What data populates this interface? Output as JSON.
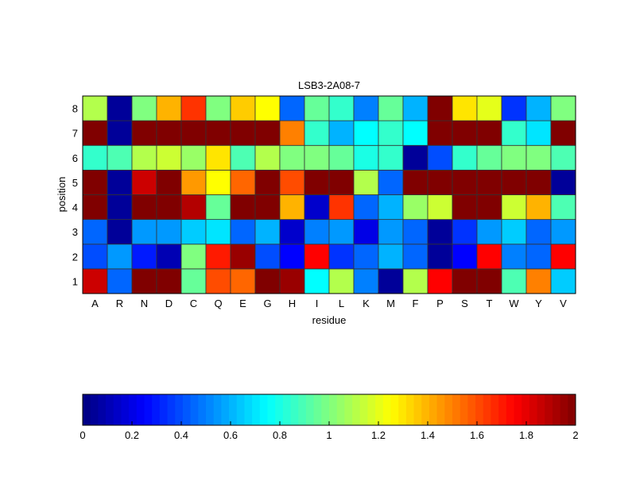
{
  "chart_data": {
    "type": "heatmap",
    "title": "LSB3-2A08-7",
    "xlabel": "residue",
    "ylabel": "position",
    "x_categories": [
      "A",
      "R",
      "N",
      "D",
      "C",
      "Q",
      "E",
      "G",
      "H",
      "I",
      "L",
      "K",
      "M",
      "F",
      "P",
      "S",
      "T",
      "W",
      "Y",
      "V"
    ],
    "y_categories": [
      "1",
      "2",
      "3",
      "4",
      "5",
      "6",
      "7",
      "8"
    ],
    "colormap": "jet",
    "clim": [
      0,
      2
    ],
    "colorbar": {
      "placement": "bottom",
      "ticks": [
        "0",
        "0.2",
        "0.4",
        "0.6",
        "0.8",
        "1",
        "1.2",
        "1.4",
        "1.6",
        "1.8",
        "2"
      ]
    },
    "values": [
      [
        1.85,
        0.45,
        2,
        2,
        0.95,
        1.6,
        1.55,
        2,
        1.95,
        0.75,
        1.1,
        0.5,
        0.05,
        1.1,
        1.75,
        2,
        2,
        0.9,
        1.5,
        0.65
      ],
      [
        0.4,
        0.55,
        0.3,
        0.1,
        1.0,
        1.7,
        1.95,
        0.4,
        0.25,
        1.75,
        0.35,
        0.45,
        0.6,
        0.45,
        0.05,
        0.25,
        1.75,
        0.5,
        0.45,
        1.75
      ],
      [
        0.45,
        0.05,
        0.55,
        0.55,
        0.65,
        0.7,
        0.45,
        0.6,
        0.15,
        0.5,
        0.55,
        0.2,
        0.55,
        0.45,
        0.05,
        0.35,
        0.55,
        0.65,
        0.45,
        0.55
      ],
      [
        2,
        0.05,
        2,
        2,
        1.9,
        0.95,
        2,
        2,
        1.4,
        0.15,
        1.65,
        0.45,
        0.6,
        1.05,
        1.15,
        2,
        2,
        1.15,
        1.4,
        0.9
      ],
      [
        2,
        0.05,
        1.85,
        2,
        1.45,
        1.25,
        1.55,
        2,
        1.6,
        2,
        2,
        1.1,
        0.45,
        2,
        2,
        2,
        2,
        2,
        2,
        0.05
      ],
      [
        0.85,
        0.9,
        1.1,
        1.15,
        1.05,
        1.3,
        0.9,
        1.1,
        1.0,
        1.0,
        0.95,
        0.8,
        0.85,
        0.05,
        0.4,
        0.85,
        0.95,
        1.0,
        1.0,
        0.9
      ],
      [
        2,
        0.05,
        2,
        2,
        2,
        2,
        2,
        2,
        1.5,
        0.85,
        0.6,
        0.75,
        0.85,
        0.75,
        2,
        2,
        2,
        0.85,
        0.7,
        2
      ],
      [
        1.1,
        0.05,
        1.0,
        1.4,
        1.65,
        1.0,
        1.35,
        1.25,
        0.45,
        0.95,
        0.85,
        0.5,
        0.95,
        0.6,
        2,
        1.3,
        1.2,
        0.35,
        0.6,
        1.0
      ]
    ]
  }
}
